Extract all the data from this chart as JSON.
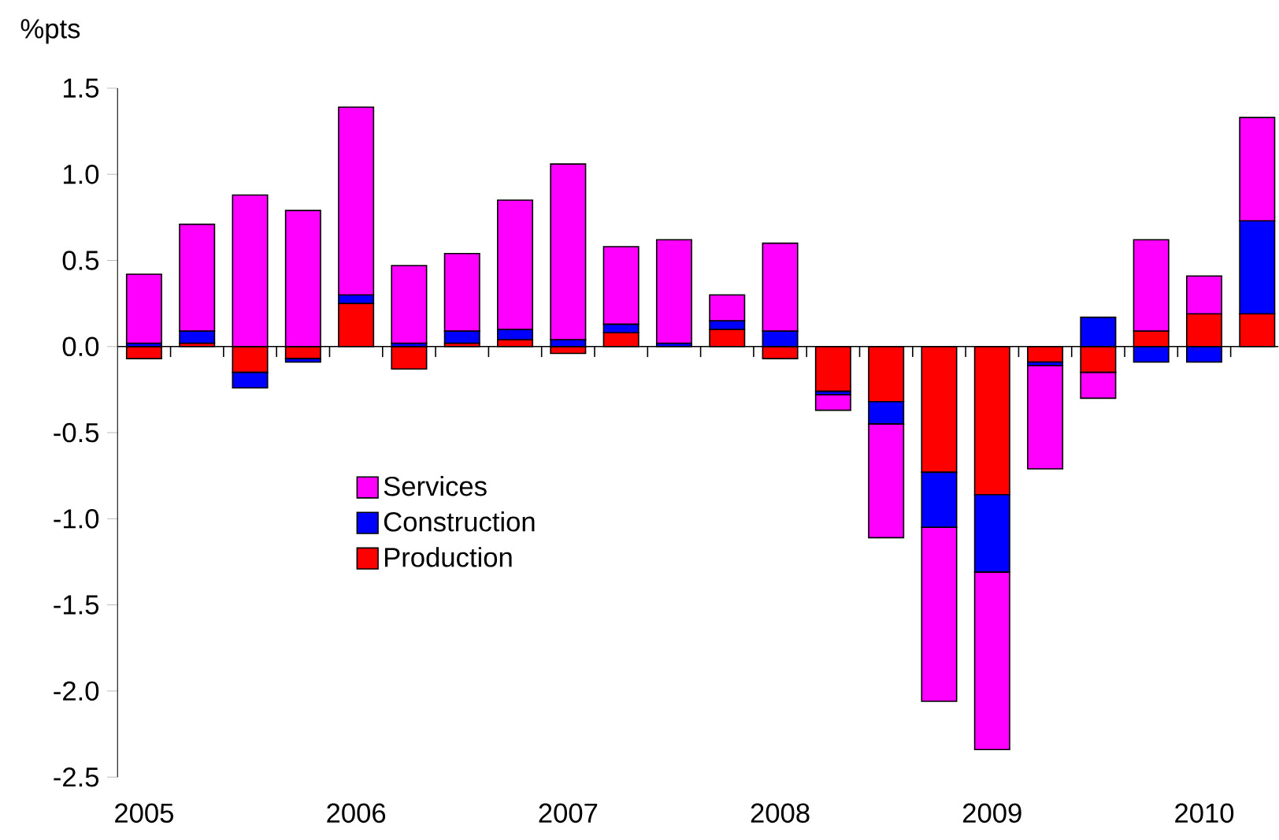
{
  "chart_data": {
    "type": "bar",
    "stacked": true,
    "ylabel": "%pts",
    "categories": [
      "2005",
      null,
      null,
      null,
      "2006",
      null,
      null,
      null,
      "2007",
      null,
      null,
      null,
      "2008",
      null,
      null,
      null,
      "2009",
      null,
      null,
      null,
      "2010",
      null
    ],
    "series": [
      {
        "name": "Production",
        "color": "#ff0000",
        "values": [
          -0.07,
          0.02,
          -0.15,
          -0.07,
          0.25,
          -0.13,
          0.02,
          0.04,
          -0.04,
          0.08,
          0,
          0.1,
          -0.07,
          -0.26,
          -0.32,
          -0.73,
          -0.86,
          -0.09,
          -0.15,
          0.09,
          0.19,
          0.19
        ]
      },
      {
        "name": "Construction",
        "color": "#0000ff",
        "values": [
          0.02,
          0.07,
          -0.09,
          -0.02,
          0.05,
          0.02,
          0.07,
          0.06,
          0.04,
          0.05,
          0.02,
          0.05,
          0.09,
          -0.02,
          -0.13,
          -0.32,
          -0.45,
          -0.02,
          0.17,
          -0.09,
          -0.09,
          0.54
        ]
      },
      {
        "name": "Services",
        "color": "#ff00ff",
        "values": [
          0.4,
          0.62,
          0.88,
          0.79,
          1.09,
          0.45,
          0.45,
          0.75,
          1.02,
          0.45,
          0.6,
          0.15,
          0.51,
          -0.09,
          -0.66,
          -1.01,
          -1.03,
          -0.6,
          -0.15,
          0.53,
          0.22,
          0.6
        ]
      }
    ],
    "ylim": [
      -2.5,
      1.5
    ],
    "yticks": [
      {
        "value": -2.5,
        "label": "-2.5"
      },
      {
        "value": -2,
        "label": "-2.0"
      },
      {
        "value": -1.5,
        "label": "-1.5"
      },
      {
        "value": -1,
        "label": "-1.0"
      },
      {
        "value": -0.5,
        "label": "-0.5"
      },
      {
        "value": 0,
        "label": "0.0"
      },
      {
        "value": 0.5,
        "label": "0.5"
      },
      {
        "value": 1,
        "label": "1.0"
      },
      {
        "value": 1.5,
        "label": "1.5"
      }
    ],
    "legend": "left"
  }
}
